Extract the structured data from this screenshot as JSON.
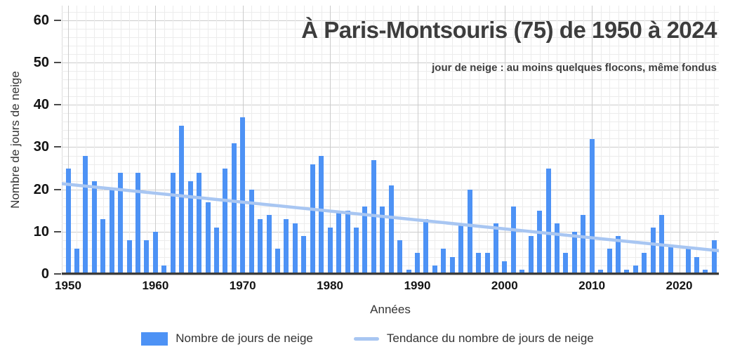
{
  "chart_data": {
    "type": "bar",
    "title": "À Paris-Montsouris (75) de 1950 à 2024",
    "subtitle": "jour de neige : au moins quelques flocons, même fondus",
    "xlabel": "Années",
    "ylabel": "Nombre de jours de neige",
    "ylim": [
      0,
      60
    ],
    "yticks": [
      0,
      10,
      20,
      30,
      40,
      50,
      60
    ],
    "xticks": [
      1950,
      1960,
      1970,
      1980,
      1990,
      2000,
      2010,
      2020
    ],
    "y_minor_step": 2,
    "y_major_step": 10,
    "grid": true,
    "legend_position": "bottom",
    "years": [
      1950,
      1951,
      1952,
      1953,
      1954,
      1955,
      1956,
      1957,
      1958,
      1959,
      1960,
      1961,
      1962,
      1963,
      1964,
      1965,
      1966,
      1967,
      1968,
      1969,
      1970,
      1971,
      1972,
      1973,
      1974,
      1975,
      1976,
      1977,
      1978,
      1979,
      1980,
      1981,
      1982,
      1983,
      1984,
      1985,
      1986,
      1987,
      1988,
      1989,
      1990,
      1991,
      1992,
      1993,
      1994,
      1995,
      1996,
      1997,
      1998,
      1999,
      2000,
      2001,
      2002,
      2003,
      2004,
      2005,
      2006,
      2007,
      2008,
      2009,
      2010,
      2011,
      2012,
      2013,
      2014,
      2015,
      2016,
      2017,
      2018,
      2019,
      2020,
      2021,
      2022,
      2023,
      2024
    ],
    "series": [
      {
        "name": "Nombre de jours de neige",
        "type": "bar",
        "values": [
          25,
          6,
          28,
          22,
          13,
          20,
          24,
          8,
          24,
          8,
          10,
          2,
          24,
          35,
          22,
          24,
          17,
          11,
          25,
          31,
          37,
          20,
          13,
          14,
          6,
          13,
          12,
          9,
          26,
          28,
          11,
          15,
          15,
          11,
          16,
          27,
          16,
          21,
          8,
          1,
          5,
          13,
          2,
          6,
          4,
          12,
          20,
          5,
          5,
          12,
          3,
          16,
          1,
          9,
          15,
          25,
          12,
          5,
          10,
          14,
          32,
          1,
          6,
          9,
          1,
          2,
          5,
          11,
          14,
          7,
          0,
          6,
          4,
          1,
          8
        ]
      },
      {
        "name": "Tendance du nombre de jours de neige",
        "type": "line",
        "trend": {
          "start_year": 1950,
          "start_value": 21.2,
          "end_year": 2024,
          "end_value": 5.6
        }
      }
    ],
    "colors": {
      "bar": "#4d92f5",
      "trend": "#a8c6f2",
      "grid_major": "#cccccc",
      "grid_minor": "#ececec",
      "axis_line": "#3b3b3b",
      "tick_text": "#141414",
      "title_text": "#3d3d3d",
      "axis_title_text": "#333333"
    }
  }
}
